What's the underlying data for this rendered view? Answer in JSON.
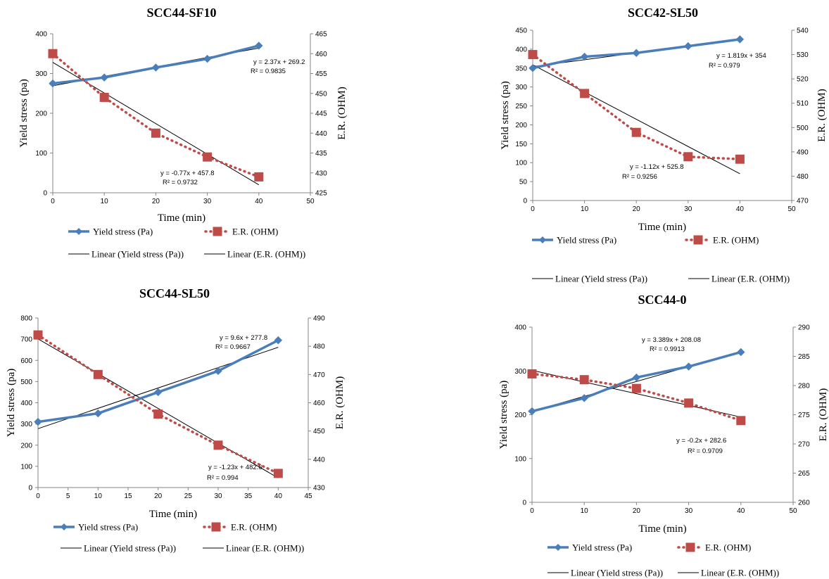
{
  "colors": {
    "yield": "#4a7ebb",
    "er": "#be4b48",
    "linear": "#000000",
    "axis": "#868686"
  },
  "icons": {
    "yield_marker": "diamond",
    "er_marker": "square"
  },
  "chart_data": [
    {
      "type": "line",
      "title": "SCC44-SF10",
      "xlabel": "Time (min)",
      "ylabel": "Yield stress (pa)",
      "y2label": "E.R. (OHM)",
      "xlim": [
        0,
        50
      ],
      "xticks": [
        0,
        10,
        20,
        30,
        40,
        50
      ],
      "ylim": [
        0,
        400
      ],
      "yticks": [
        0,
        100,
        200,
        300,
        400
      ],
      "y2lim": [
        425,
        465
      ],
      "y2ticks": [
        425,
        430,
        435,
        440,
        445,
        450,
        455,
        460,
        465
      ],
      "x": [
        0,
        10,
        20,
        30,
        40
      ],
      "series": [
        {
          "name": "Yield stress (Pa)",
          "axis": "left",
          "values": [
            275,
            290,
            315,
            337,
            370
          ]
        },
        {
          "name": "E.R. (OHM)",
          "axis": "right",
          "values": [
            460,
            449,
            440,
            434,
            429
          ]
        }
      ],
      "trendlines": [
        {
          "name": "Linear (Yield stress (Pa))",
          "axis": "left",
          "slope": 2.37,
          "intercept": 269.2,
          "equation": "y = 2.37x + 269.2",
          "r2": "R² = 0.9835"
        },
        {
          "name": "Linear (E.R. (OHM))",
          "axis": "right",
          "slope": -0.77,
          "intercept": 457.8,
          "equation": "y = -0.77x + 457.8",
          "r2": "R² = 0.9732"
        }
      ],
      "legend_position": "bottom"
    },
    {
      "type": "line",
      "title": "SCC42-SL50",
      "xlabel": "Time (min)",
      "ylabel": "Yield stress (pa)",
      "y2label": "E.R. (OHM)",
      "xlim": [
        0,
        50
      ],
      "xticks": [
        0,
        10,
        20,
        30,
        40,
        50
      ],
      "ylim": [
        0,
        450
      ],
      "yticks": [
        0,
        50,
        100,
        150,
        200,
        250,
        300,
        350,
        400,
        450
      ],
      "y2lim": [
        470,
        540
      ],
      "y2ticks": [
        470,
        480,
        490,
        500,
        510,
        520,
        530,
        540
      ],
      "x": [
        0,
        10,
        20,
        30,
        40
      ],
      "series": [
        {
          "name": "Yield stress (Pa)",
          "axis": "left",
          "values": [
            350,
            380,
            390,
            408,
            426
          ]
        },
        {
          "name": "E.R. (OHM)",
          "axis": "right",
          "values": [
            530,
            514,
            498,
            488,
            487
          ]
        }
      ],
      "trendlines": [
        {
          "name": "Linear (Yield stress (Pa))",
          "axis": "left",
          "slope": 1.819,
          "intercept": 354,
          "equation": "y = 1.819x + 354",
          "r2": "R² = 0.979"
        },
        {
          "name": "Linear (E.R. (OHM))",
          "axis": "right",
          "slope": -1.12,
          "intercept": 525.8,
          "equation": "y = -1.12x + 525.8",
          "r2": "R² = 0.9256"
        }
      ],
      "legend_position": "bottom"
    },
    {
      "type": "line",
      "title": "SCC44-SL50",
      "xlabel": "Time (min)",
      "ylabel": "Yield stress (pa)",
      "y2label": "E.R. (OHM)",
      "xlim": [
        0,
        45
      ],
      "xticks": [
        0,
        5,
        10,
        15,
        20,
        25,
        30,
        35,
        40,
        45
      ],
      "ylim": [
        0,
        800
      ],
      "yticks": [
        0,
        100,
        200,
        300,
        400,
        500,
        600,
        700,
        800
      ],
      "y2lim": [
        430,
        490
      ],
      "y2ticks": [
        430,
        440,
        450,
        460,
        470,
        480,
        490
      ],
      "x": [
        0,
        10,
        20,
        30,
        40
      ],
      "series": [
        {
          "name": "Yield stress (Pa)",
          "axis": "left",
          "values": [
            310,
            350,
            450,
            550,
            695
          ]
        },
        {
          "name": "E.R. (OHM)",
          "axis": "right",
          "values": [
            484,
            470,
            456,
            445,
            435
          ]
        }
      ],
      "trendlines": [
        {
          "name": "Linear (Yield stress (Pa))",
          "axis": "left",
          "slope": 9.6,
          "intercept": 277.8,
          "equation": "y = 9.6x + 277.8",
          "r2": "R² = 0.9667"
        },
        {
          "name": "Linear (E.R. (OHM))",
          "axis": "right",
          "slope": -1.23,
          "intercept": 482.6,
          "equation": "y = -1.23x + 482.6",
          "r2": "R² = 0.994"
        }
      ],
      "legend_position": "bottom"
    },
    {
      "type": "line",
      "title": "SCC44-0",
      "xlabel": "Time (min)",
      "ylabel": "Yield stress (pa)",
      "y2label": "E.R. (OHM)",
      "xlim": [
        0,
        50
      ],
      "xticks": [
        0,
        10,
        20,
        30,
        40,
        50
      ],
      "ylim": [
        0,
        400
      ],
      "yticks": [
        0,
        100,
        200,
        300,
        400
      ],
      "y2lim": [
        260,
        290
      ],
      "y2ticks": [
        260,
        265,
        270,
        275,
        280,
        285,
        290
      ],
      "x": [
        0,
        10,
        20,
        30,
        40
      ],
      "series": [
        {
          "name": "Yield stress (Pa)",
          "axis": "left",
          "values": [
            208,
            238,
            285,
            310,
            343
          ]
        },
        {
          "name": "E.R. (OHM)",
          "axis": "right",
          "values": [
            282,
            281,
            279.5,
            277,
            274
          ]
        }
      ],
      "trendlines": [
        {
          "name": "Linear (Yield stress (Pa))",
          "axis": "left",
          "slope": 3.389,
          "intercept": 208.08,
          "equation": "y = 3.389x + 208.08",
          "r2": "R² = 0.9913"
        },
        {
          "name": "Linear (E.R. (OHM))",
          "axis": "right",
          "slope": -0.2,
          "intercept": 282.6,
          "equation": "y = -0.2x + 282.6",
          "r2": "R² = 0.9709"
        }
      ],
      "legend_position": "bottom"
    }
  ]
}
